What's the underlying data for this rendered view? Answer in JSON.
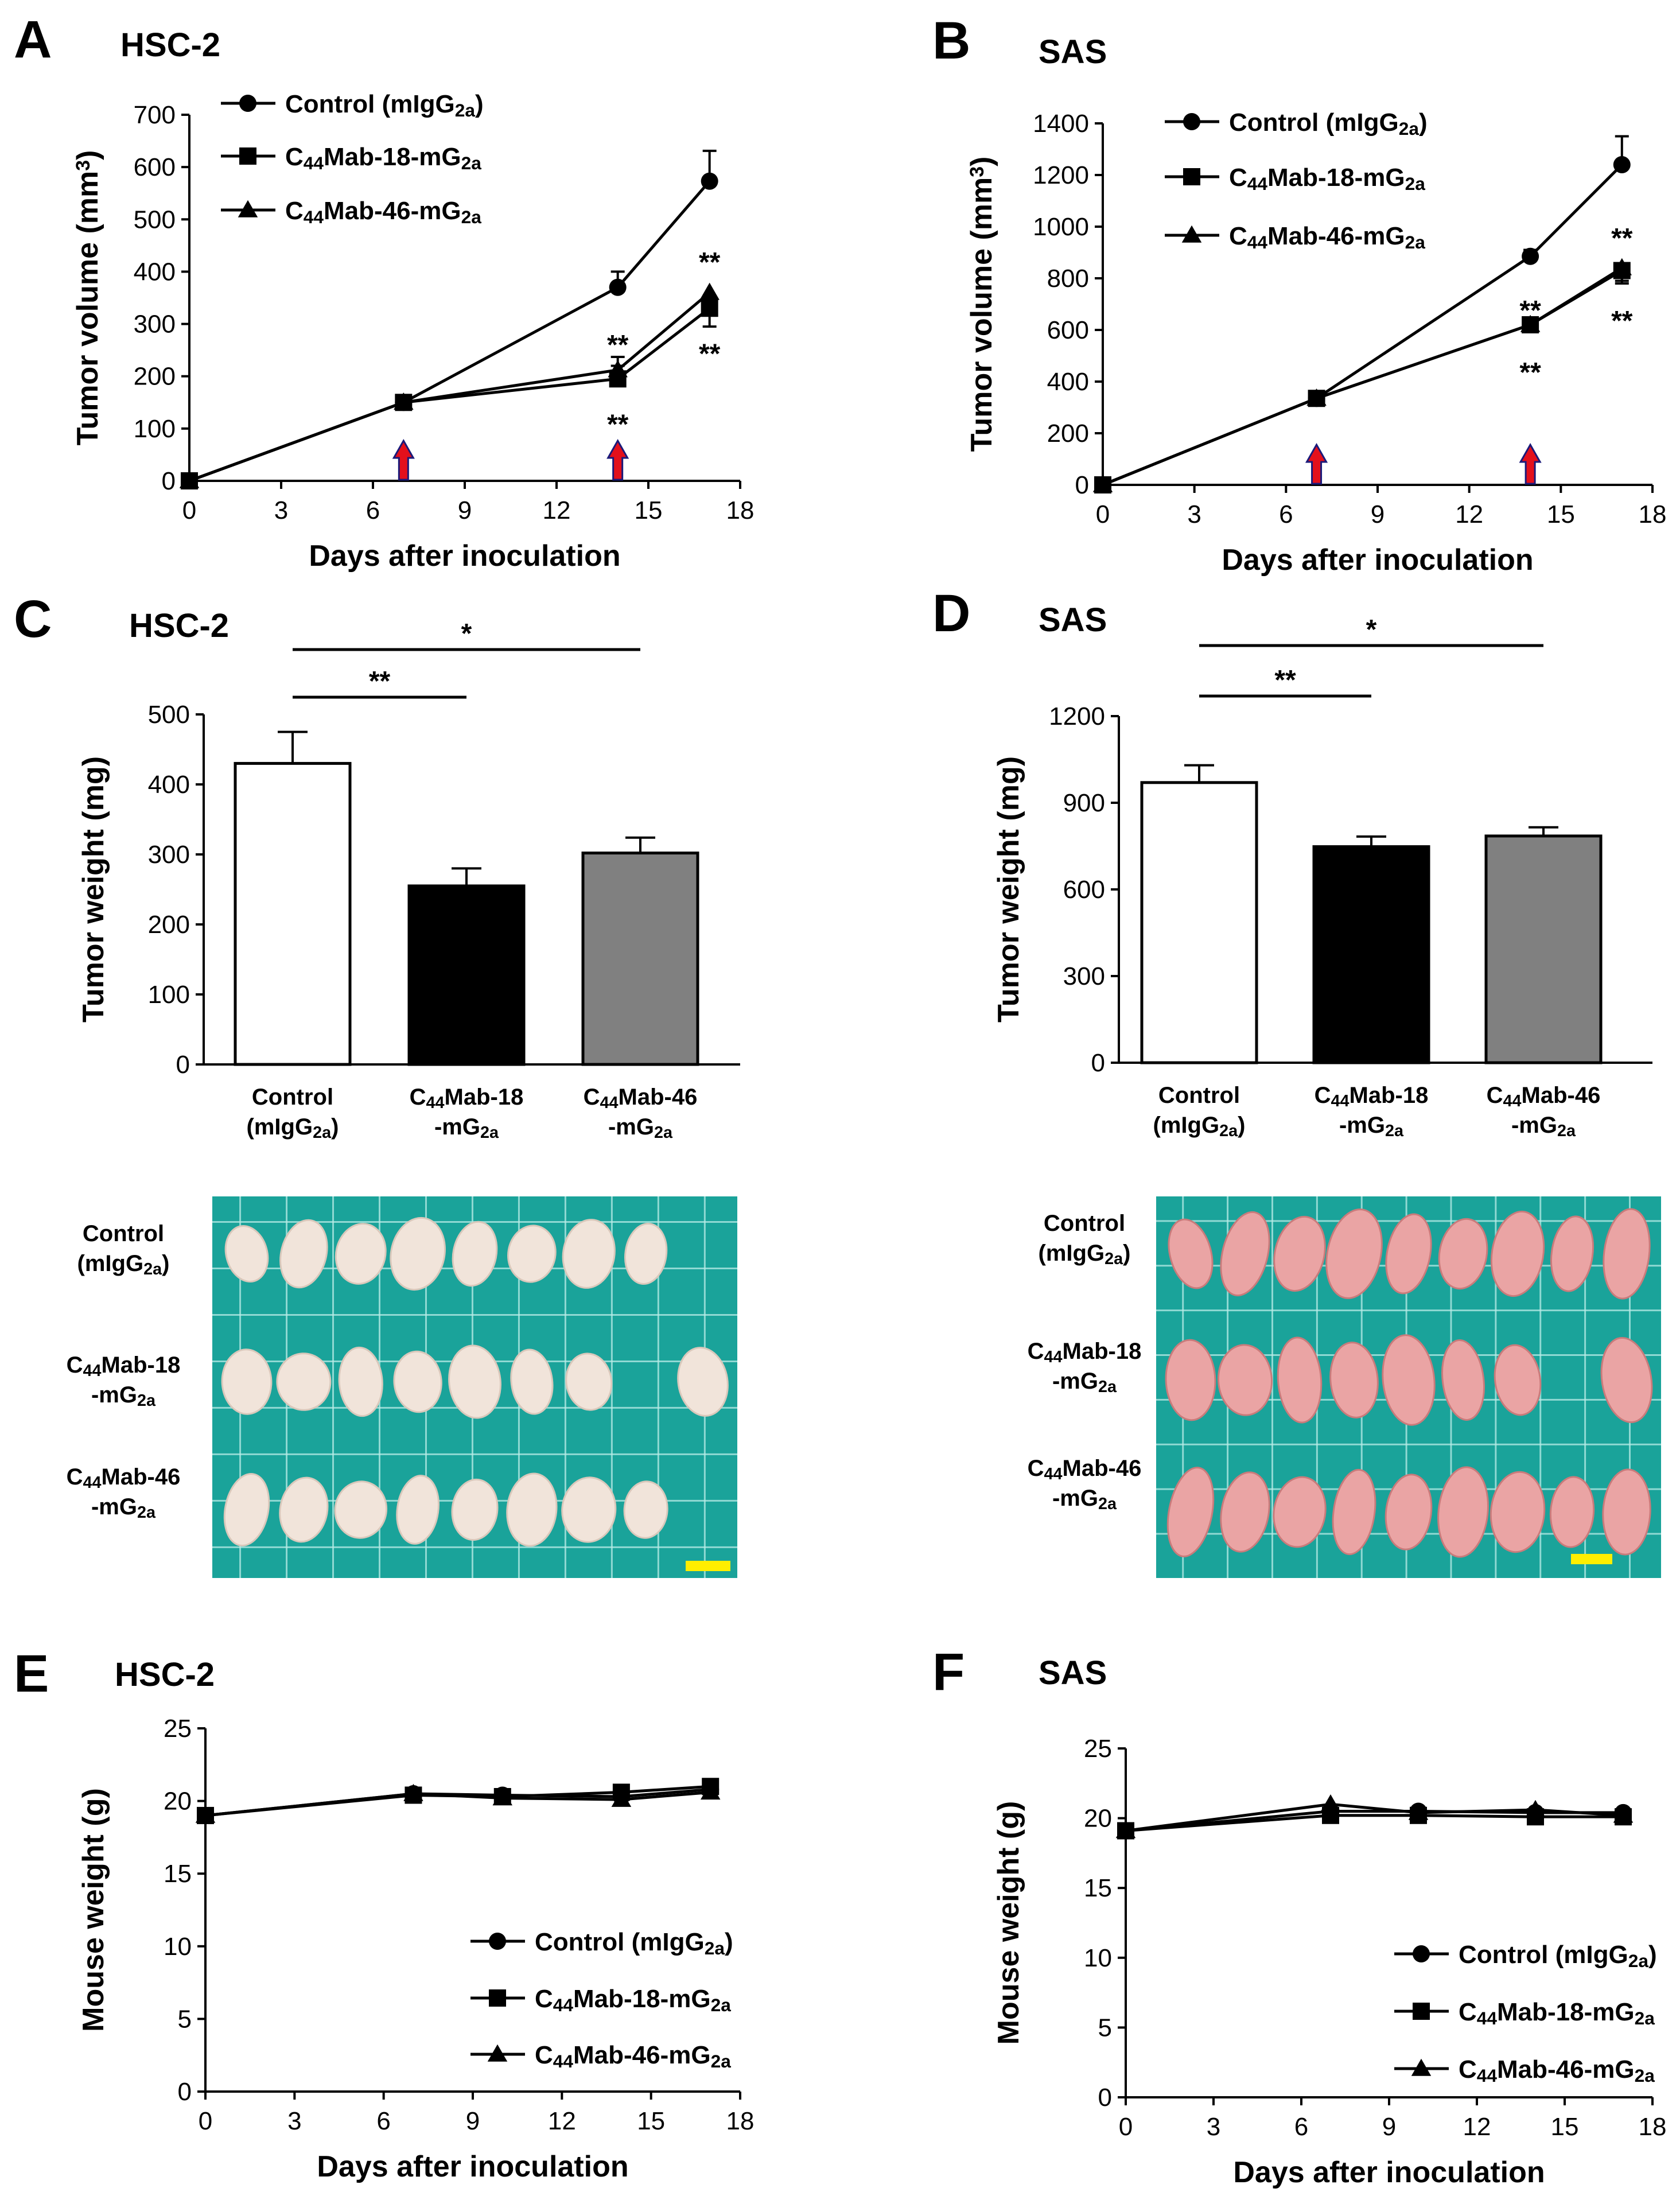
{
  "colors": {
    "photo_bg": "#1aa39a",
    "tumor": "#f1e4da",
    "tumor_sas": "#eaa4a4",
    "scale_bar": "#ffee00",
    "arrow": "#e3101c"
  },
  "series_names": [
    "Control (mIgG2a)",
    "C44Mab-18-mG2a",
    "C44Mab-46-mG2a"
  ],
  "legend": [
    {
      "main": "Control (mIgG",
      "sub": "2a",
      "tail": ")"
    },
    {
      "main": "C",
      "sub": "44",
      "tail": "Mab-18-mG",
      "sub2": "2a"
    },
    {
      "main": "C",
      "sub": "44",
      "tail": "Mab-46-mG",
      "sub2": "2a"
    }
  ],
  "categories_display": [
    {
      "line1": "Control",
      "line2": "(mIgG",
      "sub": "2a",
      "tail": ")"
    },
    {
      "line1a": "C",
      "sub1": "44",
      "line1b": "Mab-18",
      "line2": "-mG",
      "sub": "2a"
    },
    {
      "line1a": "C",
      "sub1": "44",
      "line1b": "Mab-46",
      "line2": "-mG",
      "sub": "2a"
    }
  ],
  "chart_data": [
    {
      "panel": "A",
      "type": "line",
      "title": "HSC-2",
      "xlabel": "Days after inoculation",
      "ylabel": "Tumor volume (mm3)",
      "ylabel_main": "Tumor volume (mm",
      "ylabel_sup": "3",
      "ylabel_tail": ")",
      "xlim": [
        0,
        18
      ],
      "ylim": [
        0,
        700
      ],
      "xticks": [
        0,
        3,
        6,
        9,
        12,
        15,
        18
      ],
      "yticks": [
        0,
        100,
        200,
        300,
        400,
        500,
        600,
        700
      ],
      "x": [
        0,
        7,
        14,
        17
      ],
      "series": [
        {
          "name": "Control (mIgG2a)",
          "marker": "circle",
          "values": [
            0,
            150,
            370,
            573
          ],
          "errors": [
            0,
            8,
            30,
            58
          ]
        },
        {
          "name": "C44Mab-18-mG2a",
          "marker": "square",
          "values": [
            0,
            150,
            195,
            330
          ],
          "errors": [
            0,
            8,
            25,
            35
          ]
        },
        {
          "name": "C44Mab-46-mG2a",
          "marker": "triangle",
          "values": [
            0,
            150,
            212,
            360
          ],
          "errors": [
            0,
            8,
            25,
            35
          ]
        }
      ],
      "treatment_days": [
        7,
        14
      ],
      "annotations": [
        {
          "text": "**",
          "x": 14,
          "y": 262
        },
        {
          "text": "**",
          "x": 14,
          "y": 110
        },
        {
          "text": "**",
          "x": 17,
          "y": 420
        },
        {
          "text": "**",
          "x": 17,
          "y": 245
        }
      ]
    },
    {
      "panel": "B",
      "type": "line",
      "title": "SAS",
      "xlabel": "Days after inoculation",
      "ylabel": "Tumor volume (mm3)",
      "ylabel_main": "Tumor volume (mm",
      "ylabel_sup": "3",
      "ylabel_tail": ")",
      "xlim": [
        0,
        18
      ],
      "ylim": [
        0,
        1400
      ],
      "xticks": [
        0,
        3,
        6,
        9,
        12,
        15,
        18
      ],
      "yticks": [
        0,
        200,
        400,
        600,
        800,
        1000,
        1200,
        1400
      ],
      "x": [
        0,
        7,
        14,
        17
      ],
      "series": [
        {
          "name": "Control (mIgG2a)",
          "marker": "circle",
          "values": [
            0,
            335,
            885,
            1240
          ],
          "errors": [
            0,
            25,
            25,
            110
          ]
        },
        {
          "name": "C44Mab-18-mG2a",
          "marker": "square",
          "values": [
            0,
            335,
            620,
            830
          ],
          "errors": [
            0,
            25,
            20,
            50
          ]
        },
        {
          "name": "C44Mab-46-mG2a",
          "marker": "triangle",
          "values": [
            0,
            335,
            620,
            840
          ],
          "errors": [
            0,
            25,
            20,
            50
          ]
        }
      ],
      "treatment_days": [
        7,
        14
      ],
      "annotations": [
        {
          "text": "**",
          "x": 14,
          "y": 680
        },
        {
          "text": "**",
          "x": 14,
          "y": 440
        },
        {
          "text": "**",
          "x": 17,
          "y": 960
        },
        {
          "text": "**",
          "x": 17,
          "y": 640
        }
      ]
    },
    {
      "panel": "C",
      "type": "bar",
      "title": "HSC-2",
      "ylabel": "Tumor weight (mg)",
      "categories": [
        "Control (mIgG2a)",
        "C44Mab-18-mG2a",
        "C44Mab-46-mG2a"
      ],
      "values": [
        430,
        255,
        302
      ],
      "errors": [
        45,
        25,
        22
      ],
      "bar_colors": [
        "#ffffff",
        "#000000",
        "#808080"
      ],
      "ylim": [
        0,
        500
      ],
      "yticks": [
        0,
        100,
        200,
        300,
        400,
        500
      ],
      "significance": [
        {
          "from": 0,
          "to": 1,
          "label": "**"
        },
        {
          "from": 0,
          "to": 2,
          "label": "*"
        }
      ]
    },
    {
      "panel": "D",
      "type": "bar",
      "title": "SAS",
      "ylabel": "Tumor weight (mg)",
      "categories": [
        "Control (mIgG2a)",
        "C44Mab-18-mG2a",
        "C44Mab-46-mG2a"
      ],
      "values": [
        970,
        748,
        785
      ],
      "errors": [
        60,
        35,
        30
      ],
      "bar_colors": [
        "#ffffff",
        "#000000",
        "#808080"
      ],
      "ylim": [
        0,
        1200
      ],
      "yticks": [
        0,
        300,
        600,
        900,
        1200
      ],
      "significance": [
        {
          "from": 0,
          "to": 1,
          "label": "**"
        },
        {
          "from": 0,
          "to": 2,
          "label": "*"
        }
      ]
    },
    {
      "panel": "E",
      "type": "line",
      "title": "HSC-2",
      "xlabel": "Days after inoculation",
      "ylabel": "Mouse weight (g)",
      "xlim": [
        0,
        18
      ],
      "ylim": [
        0,
        25
      ],
      "xticks": [
        0,
        3,
        6,
        9,
        12,
        15,
        18
      ],
      "yticks": [
        0,
        5,
        10,
        15,
        20,
        25
      ],
      "x": [
        0,
        7,
        10,
        14,
        17
      ],
      "series": [
        {
          "name": "Control (mIgG2a)",
          "marker": "circle",
          "values": [
            19.0,
            20.5,
            20.4,
            20.3,
            20.8
          ],
          "errors": [
            0.2,
            0.3,
            0.3,
            0.4,
            0.3
          ]
        },
        {
          "name": "C44Mab-18-mG2a",
          "marker": "square",
          "values": [
            19.0,
            20.4,
            20.3,
            20.6,
            21.0
          ],
          "errors": [
            0.2,
            0.3,
            0.3,
            0.3,
            0.3
          ]
        },
        {
          "name": "C44Mab-46-mG2a",
          "marker": "triangle",
          "values": [
            19.0,
            20.5,
            20.2,
            20.1,
            20.6
          ],
          "errors": [
            0.2,
            0.3,
            0.3,
            0.3,
            0.3
          ]
        }
      ]
    },
    {
      "panel": "F",
      "type": "line",
      "title": "SAS",
      "xlabel": "Days after inoculation",
      "ylabel": "Mouse weight (g)",
      "xlim": [
        0,
        18
      ],
      "ylim": [
        0,
        25
      ],
      "xticks": [
        0,
        3,
        6,
        9,
        12,
        15,
        18
      ],
      "yticks": [
        0,
        5,
        10,
        15,
        20,
        25
      ],
      "x": [
        0,
        7,
        10,
        14,
        17
      ],
      "series": [
        {
          "name": "Control (mIgG2a)",
          "marker": "circle",
          "values": [
            19.1,
            20.5,
            20.5,
            20.4,
            20.4
          ],
          "errors": [
            0.2,
            0.3,
            0.3,
            0.3,
            0.3
          ]
        },
        {
          "name": "C44Mab-18-mG2a",
          "marker": "square",
          "values": [
            19.1,
            20.2,
            20.2,
            20.1,
            20.1
          ],
          "errors": [
            0.2,
            0.3,
            0.3,
            0.4,
            0.3
          ]
        },
        {
          "name": "C44Mab-46-mG2a",
          "marker": "triangle",
          "values": [
            19.1,
            21.0,
            20.4,
            20.6,
            20.2
          ],
          "errors": [
            0.2,
            0.3,
            0.3,
            0.3,
            0.3
          ]
        }
      ]
    }
  ]
}
